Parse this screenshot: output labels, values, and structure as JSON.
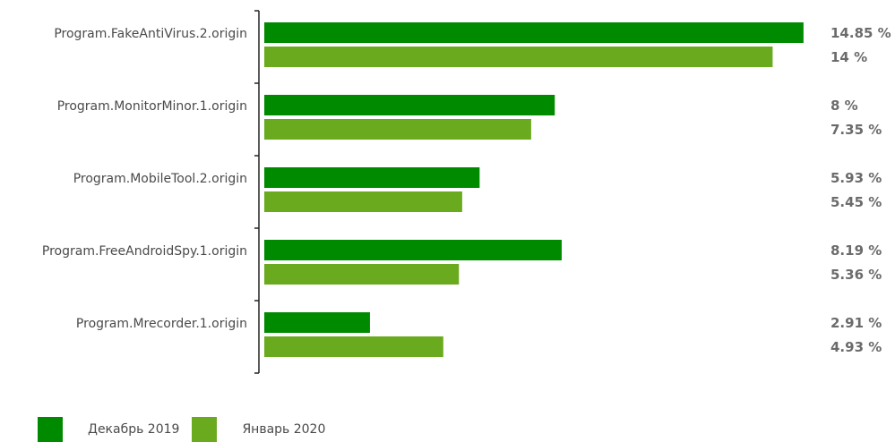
{
  "chart_data": {
    "type": "bar",
    "orientation": "horizontal",
    "categories": [
      "Program.FakeAntiVirus.2.origin",
      "Program.MonitorMinor.1.origin",
      "Program.MobileTool.2.origin",
      "Program.FreeAndroidSpy.1.origin",
      "Program.Mrecorder.1.origin"
    ],
    "series": [
      {
        "name": "Декабрь 2019",
        "color": "#008a00",
        "values": [
          14.85,
          8,
          5.93,
          8.19,
          2.91
        ],
        "labels": [
          "14.85 %",
          "8 %",
          "5.93 %",
          "8.19 %",
          "2.91 %"
        ]
      },
      {
        "name": "Январь 2020",
        "color": "#6aaa1e",
        "values": [
          14,
          7.35,
          5.45,
          5.36,
          4.93
        ],
        "labels": [
          "14 %",
          "7.35 %",
          "5.45 %",
          "5.36 %",
          "4.93 %"
        ]
      }
    ],
    "xlim": [
      0,
      15.1
    ],
    "grid": false,
    "legend_position": "bottom-left"
  }
}
